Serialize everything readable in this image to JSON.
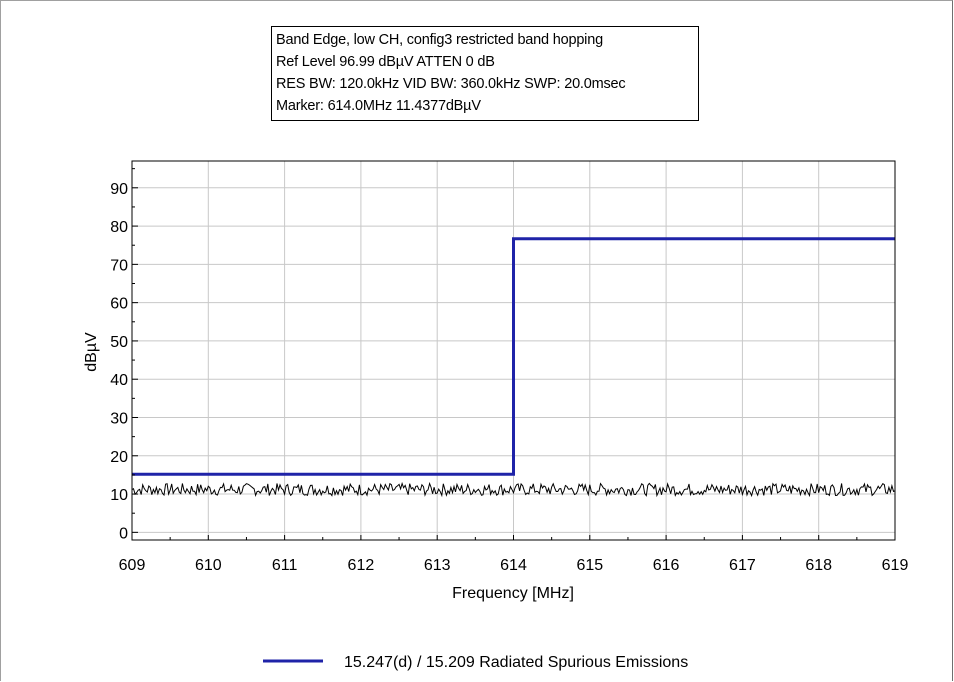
{
  "info_box": {
    "lines": [
      "Band Edge, low CH, config3 restricted band hopping",
      "Ref Level 96.99 dBµV    ATTEN 0 dB",
      "RES BW: 120.0kHz  VID BW: 360.0kHz  SWP: 20.0msec",
      "Marker: 614.0MHz  11.4377dBµV"
    ]
  },
  "colors": {
    "limit_line": "#1f23a8",
    "trace": "#000000",
    "grid": "#c8c8c8"
  },
  "chart_data": {
    "type": "line",
    "xlabel": "Frequency [MHz]",
    "ylabel": "dBµV",
    "xlim": [
      609,
      619
    ],
    "ylim": [
      -2,
      97
    ],
    "x_ticks": [
      609,
      610,
      611,
      612,
      613,
      614,
      615,
      616,
      617,
      618,
      619
    ],
    "y_ticks": [
      0,
      10,
      20,
      30,
      40,
      50,
      60,
      70,
      80,
      90
    ],
    "grid": true,
    "legend_position": "bottom-center",
    "series": [
      {
        "name": "15.247(d) / 15.209 Radiated Spurious Emissions",
        "style": "step",
        "x": [
          609,
          614,
          614,
          619
        ],
        "y": [
          15.2,
          15.2,
          76.7,
          76.7
        ]
      },
      {
        "style": "noise",
        "x": [
          609,
          619
        ],
        "y_mean": 11.2,
        "y_range": [
          9.5,
          13.5
        ]
      }
    ],
    "markers": [
      {
        "x": 614.0,
        "y": 11.4377
      }
    ]
  }
}
